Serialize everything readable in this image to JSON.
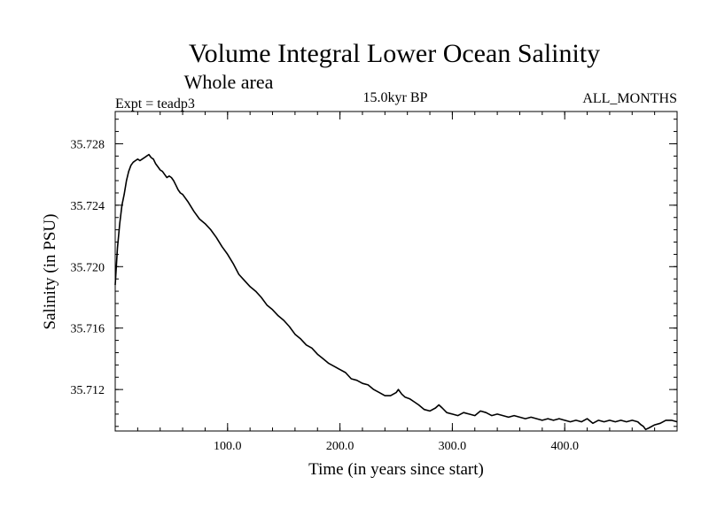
{
  "chart_data": {
    "type": "line",
    "title": "Volume Integral Lower Ocean Salinity",
    "subtitle": "Whole area",
    "expt_label": "Expt = teadp3",
    "period_label": "15.0kyr BP",
    "months_label": "ALL_MONTHS",
    "xlabel": "Time (in years since start)",
    "ylabel": "Salinity (in PSU)",
    "xlim": [
      0,
      500
    ],
    "ylim": [
      35.7093,
      35.7301
    ],
    "x_ticks": [
      100,
      200,
      300,
      400
    ],
    "x_tick_labels": [
      "100.0",
      "200.0",
      "300.0",
      "400.0"
    ],
    "y_ticks": [
      35.712,
      35.716,
      35.72,
      35.724,
      35.728
    ],
    "y_tick_labels": [
      "35.712",
      "35.716",
      "35.720",
      "35.724",
      "35.728"
    ],
    "series": [
      {
        "name": "Salinity",
        "x": [
          0,
          2,
          4,
          6,
          8,
          10,
          12,
          14,
          16,
          18,
          20,
          22,
          24,
          26,
          28,
          30,
          32,
          34,
          36,
          38,
          40,
          42,
          44,
          46,
          48,
          50,
          52,
          54,
          56,
          58,
          60,
          65,
          70,
          75,
          80,
          85,
          90,
          95,
          100,
          105,
          110,
          115,
          120,
          125,
          130,
          135,
          140,
          145,
          150,
          155,
          160,
          165,
          170,
          175,
          180,
          185,
          190,
          195,
          200,
          205,
          210,
          215,
          220,
          225,
          230,
          235,
          240,
          245,
          250,
          252,
          255,
          258,
          262,
          266,
          270,
          275,
          280,
          285,
          288,
          291,
          295,
          300,
          305,
          310,
          315,
          320,
          325,
          330,
          335,
          340,
          345,
          350,
          355,
          360,
          365,
          370,
          375,
          380,
          385,
          390,
          395,
          400,
          405,
          410,
          415,
          420,
          425,
          430,
          435,
          440,
          445,
          450,
          455,
          460,
          465,
          468,
          470,
          472,
          475,
          480,
          485,
          490,
          495,
          500
        ],
        "values": [
          35.7188,
          35.7212,
          35.7228,
          35.724,
          35.7247,
          35.7256,
          35.7262,
          35.7266,
          35.7268,
          35.7269,
          35.727,
          35.7269,
          35.727,
          35.7271,
          35.7272,
          35.7273,
          35.7271,
          35.727,
          35.7267,
          35.7265,
          35.7263,
          35.7262,
          35.726,
          35.7258,
          35.7259,
          35.7258,
          35.7256,
          35.7253,
          35.725,
          35.7248,
          35.7247,
          35.7242,
          35.7236,
          35.7231,
          35.7228,
          35.7224,
          35.7219,
          35.7213,
          35.7208,
          35.7202,
          35.7195,
          35.7191,
          35.7187,
          35.7184,
          35.718,
          35.7175,
          35.7172,
          35.7168,
          35.7165,
          35.7161,
          35.7156,
          35.7153,
          35.7149,
          35.7147,
          35.7143,
          35.714,
          35.7137,
          35.7135,
          35.7133,
          35.7131,
          35.7127,
          35.7126,
          35.7124,
          35.7123,
          35.712,
          35.7118,
          35.7116,
          35.7116,
          35.7118,
          35.712,
          35.7117,
          35.7115,
          35.7114,
          35.7112,
          35.711,
          35.7107,
          35.7106,
          35.7108,
          35.711,
          35.7108,
          35.7105,
          35.7104,
          35.7103,
          35.7105,
          35.7104,
          35.7103,
          35.7106,
          35.7105,
          35.7103,
          35.7104,
          35.7103,
          35.7102,
          35.7103,
          35.7102,
          35.7101,
          35.7102,
          35.7101,
          35.71,
          35.7101,
          35.71,
          35.7101,
          35.71,
          35.7099,
          35.71,
          35.7099,
          35.7101,
          35.7098,
          35.71,
          35.7099,
          35.71,
          35.7099,
          35.71,
          35.7099,
          35.71,
          35.7099,
          35.7097,
          35.7096,
          35.7094,
          35.7095,
          35.7097,
          35.7098,
          35.71,
          35.71,
          35.7099
        ]
      }
    ]
  }
}
